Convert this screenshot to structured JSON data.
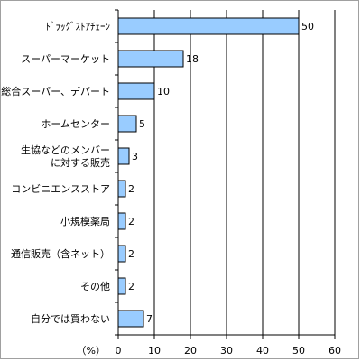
{
  "chart_data": {
    "type": "bar",
    "orientation": "horizontal",
    "categories": [
      [
        "ﾄﾞﾗｯｸﾞｽﾄｱﾁｪｰﾝ"
      ],
      [
        "スーパーマーケット"
      ],
      [
        "総合スーパー、デパート"
      ],
      [
        "ホームセンター"
      ],
      [
        "生協などのメンバー",
        "に対する販売"
      ],
      [
        "コンビニエンスストア"
      ],
      [
        "小規模薬局"
      ],
      [
        "通信販売（含ネット）"
      ],
      [
        "その他"
      ],
      [
        "自分では買わない"
      ]
    ],
    "values": [
      50,
      18,
      10,
      5,
      3,
      2,
      2,
      2,
      2,
      7
    ],
    "xlim": [
      0,
      60
    ],
    "xticks": [
      "0",
      "10",
      "20",
      "30",
      "40",
      "50",
      "60"
    ],
    "unit_label": "（%）",
    "grid": "vertical",
    "bar_color": "#99ccff",
    "bar_edge_color": "#000000"
  }
}
